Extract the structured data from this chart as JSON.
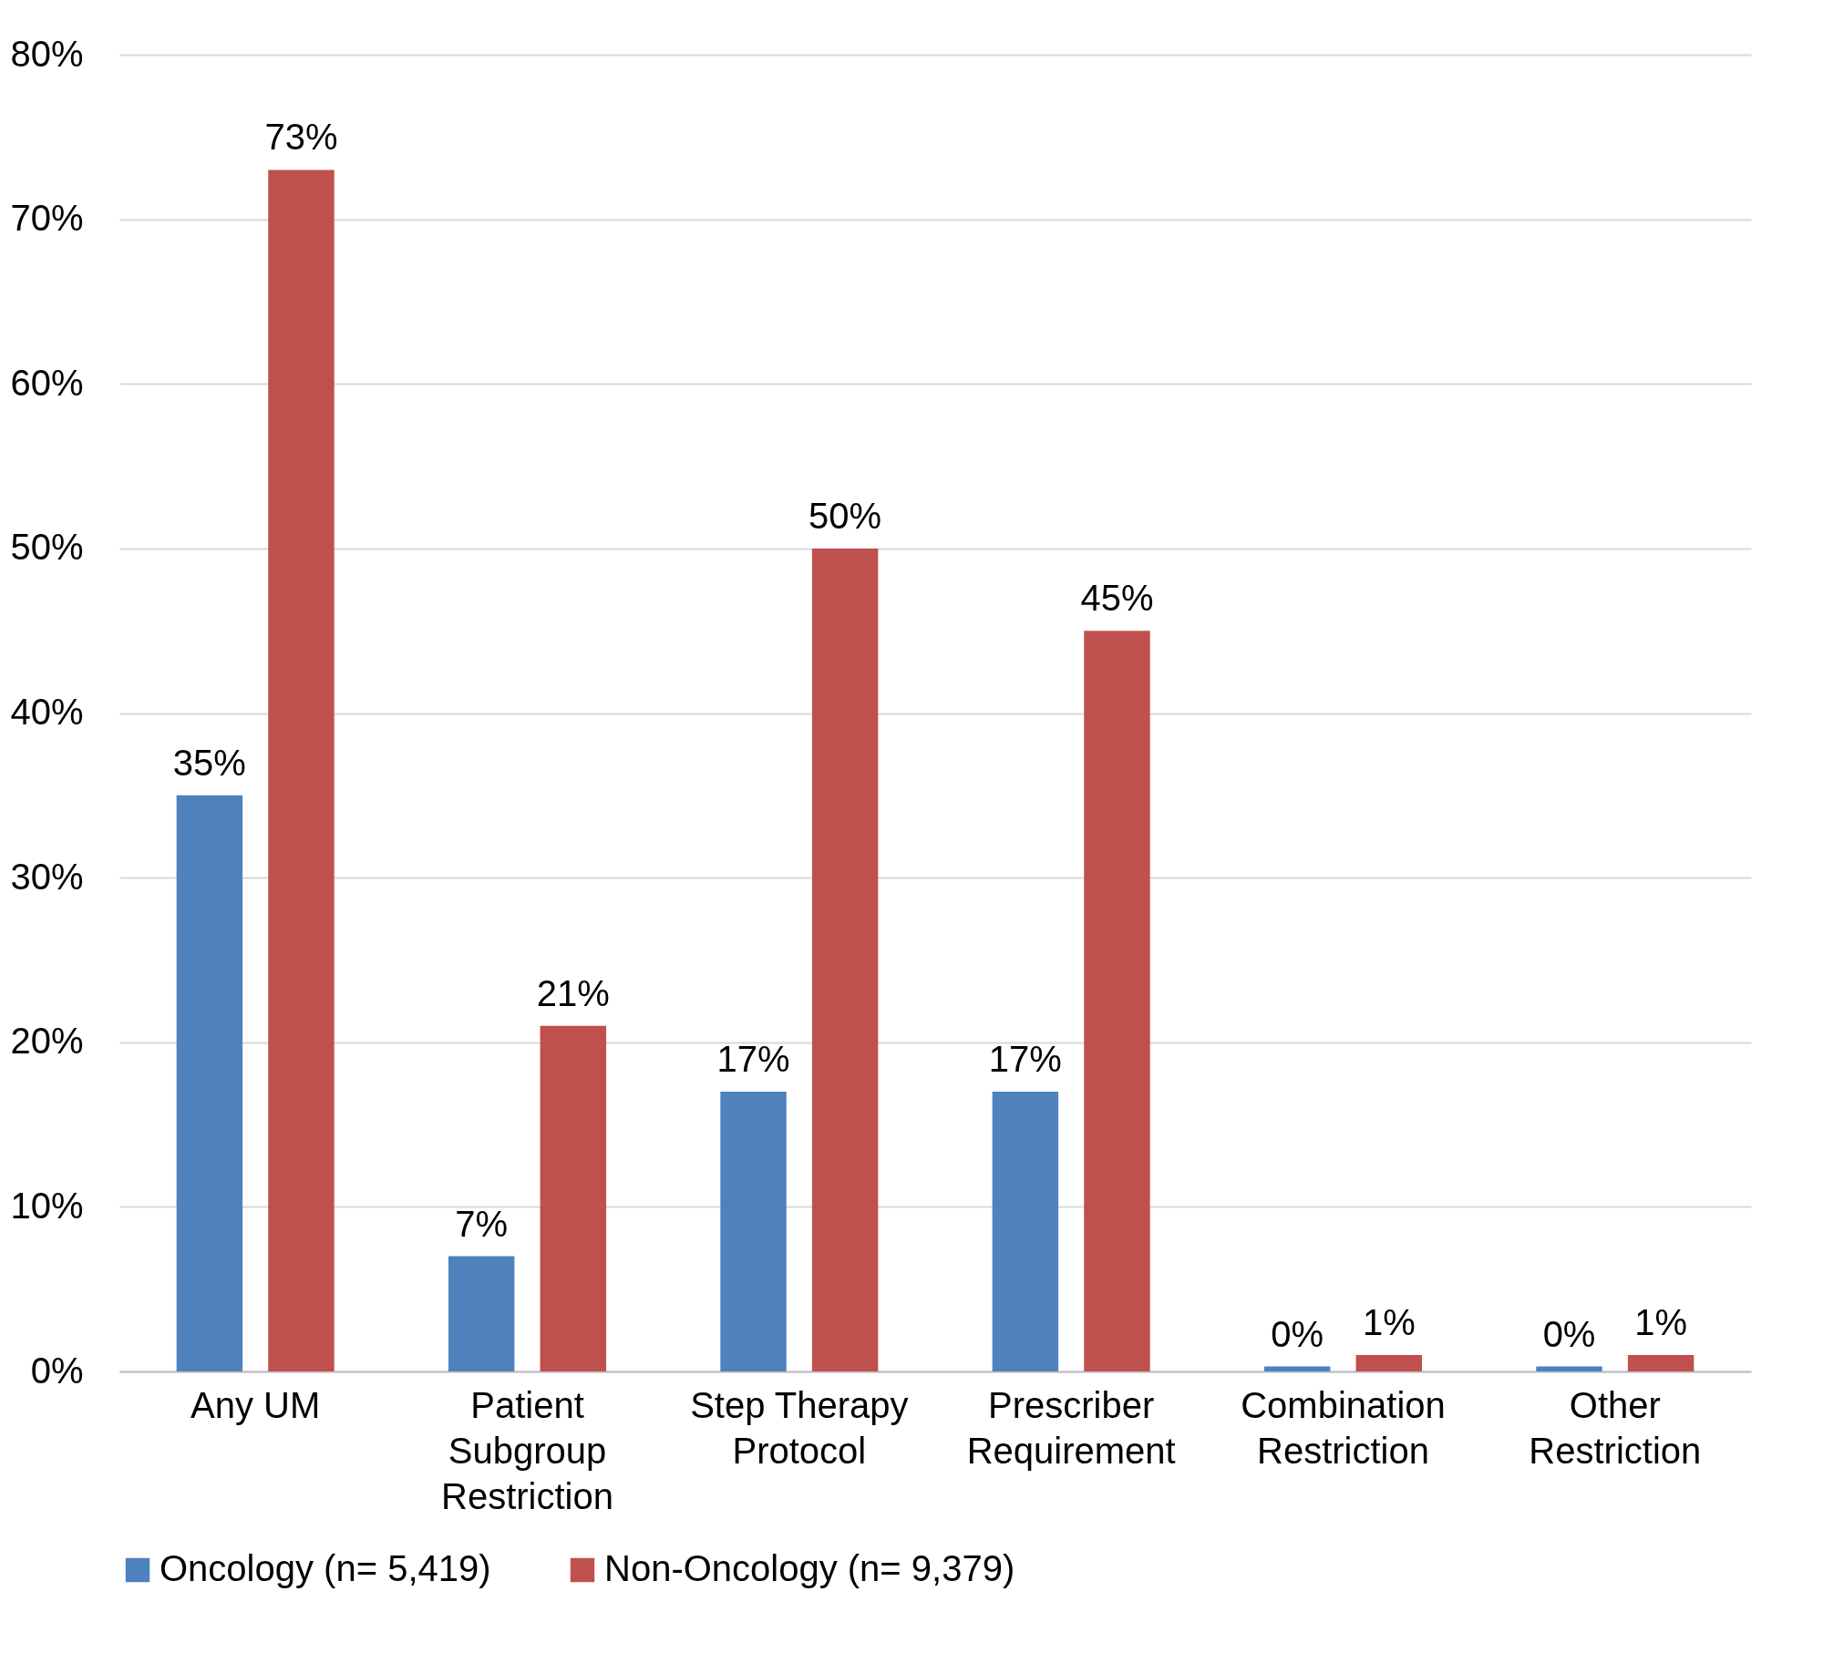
{
  "chart_data": {
    "type": "bar",
    "categories": [
      "Any UM",
      "Patient Subgroup Restriction",
      "Step Therapy Protocol",
      "Prescriber Requirement",
      "Combination Restriction",
      "Other Restriction"
    ],
    "series": [
      {
        "name": "Oncology (n= 5,419)",
        "color": "#4f81bd",
        "values": [
          35,
          7,
          17,
          17,
          0.3,
          0.3
        ],
        "value_labels": [
          "35%",
          "7%",
          "17%",
          "17%",
          "0%",
          "0%"
        ]
      },
      {
        "name": "Non-Oncology (n= 9,379)",
        "color": "#c0504d",
        "values": [
          73,
          21,
          50,
          45,
          1,
          1
        ],
        "value_labels": [
          "73%",
          "21%",
          "50%",
          "45%",
          "1%",
          "1%"
        ]
      }
    ],
    "ylim": [
      0,
      80
    ],
    "yticks": [
      {
        "value": 0,
        "label": "0%"
      },
      {
        "value": 10,
        "label": "10%"
      },
      {
        "value": 20,
        "label": "20%"
      },
      {
        "value": 30,
        "label": "30%"
      },
      {
        "value": 40,
        "label": "40%"
      },
      {
        "value": 50,
        "label": "50%"
      },
      {
        "value": 60,
        "label": "60%"
      },
      {
        "value": 70,
        "label": "70%"
      },
      {
        "value": 80,
        "label": "80%"
      }
    ],
    "grid": "y",
    "legend": "bottom"
  }
}
